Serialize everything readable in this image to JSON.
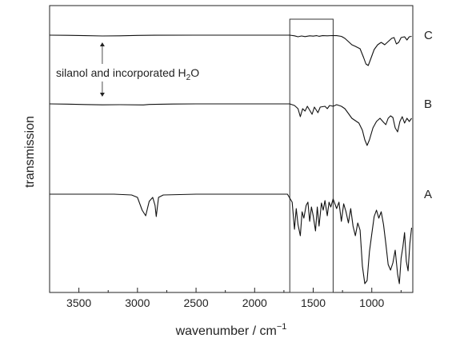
{
  "chart_data": {
    "type": "line",
    "xlabel": "wavenumber / cm",
    "xlabel_superscript": "−1",
    "ylabel": "transmission",
    "xlim": [
      3750,
      650
    ],
    "x_reversed": true,
    "x_ticks": [
      3500,
      3000,
      2500,
      2000,
      1500,
      1000
    ],
    "x_tick_labels": [
      "3500",
      "3000",
      "2500",
      "2000",
      "1500",
      "1000"
    ],
    "y_ticks_shown": false,
    "highlight_region": {
      "x_start": 1700,
      "x_end": 1330
    },
    "annotation": {
      "text": "silanol and incorporated H",
      "subscript": "2",
      "suffix": "O",
      "arrow_x": 3300,
      "arrow_spans_traces": [
        "C",
        "B"
      ]
    },
    "series": [
      {
        "name": "C",
        "points": [
          [
            3750,
            0.0
          ],
          [
            3600,
            -0.2
          ],
          [
            3450,
            -0.6
          ],
          [
            3300,
            -1.0
          ],
          [
            3150,
            -0.8
          ],
          [
            3000,
            -0.3
          ],
          [
            2850,
            -0.1
          ],
          [
            2500,
            0.0
          ],
          [
            2000,
            0.0
          ],
          [
            1700,
            0.0
          ],
          [
            1660,
            -0.8
          ],
          [
            1630,
            -2.0
          ],
          [
            1600,
            -1.0
          ],
          [
            1570,
            -1.8
          ],
          [
            1530,
            -0.8
          ],
          [
            1500,
            -1.2
          ],
          [
            1470,
            -0.6
          ],
          [
            1450,
            -1.4
          ],
          [
            1420,
            -0.6
          ],
          [
            1380,
            -0.8
          ],
          [
            1340,
            -0.5
          ],
          [
            1300,
            -0.6
          ],
          [
            1260,
            -1.5
          ],
          [
            1230,
            -4.0
          ],
          [
            1200,
            -8.0
          ],
          [
            1170,
            -12.0
          ],
          [
            1140,
            -14.0
          ],
          [
            1100,
            -17.0
          ],
          [
            1070,
            -28.0
          ],
          [
            1050,
            -36.0
          ],
          [
            1030,
            -38.0
          ],
          [
            1010,
            -30.0
          ],
          [
            980,
            -18.0
          ],
          [
            950,
            -12.0
          ],
          [
            920,
            -9.0
          ],
          [
            890,
            -12.0
          ],
          [
            860,
            -8.0
          ],
          [
            830,
            -4.0
          ],
          [
            810,
            -3.0
          ],
          [
            790,
            -11.0
          ],
          [
            770,
            -9.0
          ],
          [
            750,
            -3.0
          ],
          [
            720,
            -2.0
          ],
          [
            700,
            -6.0
          ],
          [
            680,
            -2.0
          ],
          [
            660,
            -1.5
          ]
        ]
      },
      {
        "name": "B",
        "points": [
          [
            3750,
            0.0
          ],
          [
            3600,
            -0.3
          ],
          [
            3450,
            -0.8
          ],
          [
            3300,
            -1.2
          ],
          [
            3150,
            -1.0
          ],
          [
            2950,
            -1.3
          ],
          [
            2900,
            -0.7
          ],
          [
            2700,
            -0.2
          ],
          [
            2500,
            0.0
          ],
          [
            2000,
            0.0
          ],
          [
            1700,
            0.0
          ],
          [
            1660,
            -2.0
          ],
          [
            1630,
            -6.0
          ],
          [
            1610,
            -16.0
          ],
          [
            1590,
            -6.0
          ],
          [
            1570,
            -9.0
          ],
          [
            1550,
            -3.0
          ],
          [
            1510,
            -13.0
          ],
          [
            1490,
            -4.0
          ],
          [
            1460,
            -11.0
          ],
          [
            1440,
            -4.0
          ],
          [
            1400,
            -3.0
          ],
          [
            1380,
            -6.0
          ],
          [
            1360,
            -2.0
          ],
          [
            1330,
            -3.0
          ],
          [
            1300,
            -1.0
          ],
          [
            1260,
            -3.0
          ],
          [
            1230,
            -6.0
          ],
          [
            1200,
            -12.0
          ],
          [
            1170,
            -18.0
          ],
          [
            1140,
            -21.0
          ],
          [
            1110,
            -24.0
          ],
          [
            1080,
            -33.0
          ],
          [
            1060,
            -45.0
          ],
          [
            1040,
            -52.0
          ],
          [
            1020,
            -45.0
          ],
          [
            990,
            -30.0
          ],
          [
            960,
            -22.0
          ],
          [
            930,
            -18.0
          ],
          [
            900,
            -23.0
          ],
          [
            880,
            -26.0
          ],
          [
            860,
            -18.0
          ],
          [
            840,
            -15.0
          ],
          [
            820,
            -17.0
          ],
          [
            800,
            -30.0
          ],
          [
            780,
            -35.0
          ],
          [
            760,
            -22.0
          ],
          [
            740,
            -16.0
          ],
          [
            720,
            -24.0
          ],
          [
            700,
            -18.0
          ],
          [
            680,
            -22.0
          ],
          [
            660,
            -18.0
          ]
        ]
      },
      {
        "name": "A",
        "points": [
          [
            3750,
            0.0
          ],
          [
            3500,
            0.0
          ],
          [
            3200,
            0.0
          ],
          [
            3050,
            -1.0
          ],
          [
            3000,
            -4.0
          ],
          [
            2960,
            -20.0
          ],
          [
            2930,
            -27.0
          ],
          [
            2900,
            -9.0
          ],
          [
            2870,
            -4.0
          ],
          [
            2850,
            -14.0
          ],
          [
            2840,
            -28.0
          ],
          [
            2820,
            -4.0
          ],
          [
            2780,
            -1.0
          ],
          [
            2500,
            0.0
          ],
          [
            2000,
            0.0
          ],
          [
            1720,
            0.0
          ],
          [
            1680,
            -10.0
          ],
          [
            1660,
            -44.0
          ],
          [
            1645,
            -18.0
          ],
          [
            1630,
            -38.0
          ],
          [
            1610,
            -52.0
          ],
          [
            1595,
            -22.0
          ],
          [
            1580,
            -30.0
          ],
          [
            1560,
            -14.0
          ],
          [
            1545,
            -10.0
          ],
          [
            1530,
            -34.0
          ],
          [
            1515,
            -16.0
          ],
          [
            1500,
            -27.0
          ],
          [
            1480,
            -46.0
          ],
          [
            1465,
            -16.0
          ],
          [
            1450,
            -40.0
          ],
          [
            1430,
            -11.0
          ],
          [
            1415,
            -20.0
          ],
          [
            1400,
            -8.0
          ],
          [
            1380,
            -27.0
          ],
          [
            1365,
            -10.0
          ],
          [
            1350,
            -16.0
          ],
          [
            1330,
            -6.0
          ],
          [
            1300,
            -18.0
          ],
          [
            1280,
            -10.0
          ],
          [
            1260,
            -34.0
          ],
          [
            1240,
            -12.0
          ],
          [
            1220,
            -22.0
          ],
          [
            1200,
            -36.0
          ],
          [
            1180,
            -18.0
          ],
          [
            1160,
            -40.0
          ],
          [
            1140,
            -52.0
          ],
          [
            1120,
            -36.0
          ],
          [
            1100,
            -45.0
          ],
          [
            1080,
            -90.0
          ],
          [
            1060,
            -112.0
          ],
          [
            1040,
            -108.0
          ],
          [
            1020,
            -72.0
          ],
          [
            1000,
            -50.0
          ],
          [
            980,
            -28.0
          ],
          [
            960,
            -20.0
          ],
          [
            940,
            -30.0
          ],
          [
            920,
            -22.0
          ],
          [
            900,
            -38.0
          ],
          [
            880,
            -62.0
          ],
          [
            860,
            -88.0
          ],
          [
            840,
            -95.0
          ],
          [
            820,
            -86.0
          ],
          [
            800,
            -70.0
          ],
          [
            780,
            -100.0
          ],
          [
            765,
            -112.0
          ],
          [
            750,
            -80.0
          ],
          [
            735,
            -66.0
          ],
          [
            720,
            -48.0
          ],
          [
            705,
            -84.0
          ],
          [
            690,
            -96.0
          ],
          [
            675,
            -62.0
          ],
          [
            660,
            -42.0
          ]
        ]
      }
    ]
  }
}
